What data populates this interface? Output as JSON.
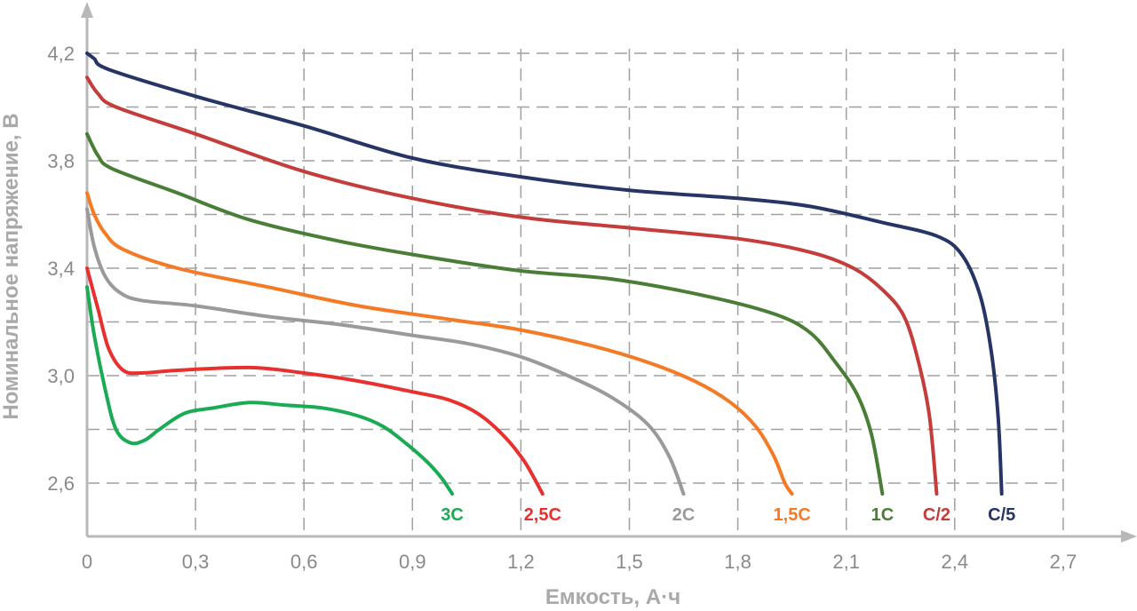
{
  "chart_data": {
    "type": "line",
    "xlabel": "Емкость, А·ч",
    "ylabel": "Номинальное напряжение, В",
    "xlim": [
      0,
      2.85
    ],
    "ylim": [
      2.45,
      4.35
    ],
    "x_ticks": [
      0,
      0.3,
      0.6,
      0.9,
      1.2,
      1.5,
      1.8,
      2.1,
      2.4,
      2.7
    ],
    "x_tick_labels": [
      "0",
      "0,3",
      "0,6",
      "0,9",
      "1,2",
      "1,5",
      "1,8",
      "2,1",
      "2,4",
      "2,7"
    ],
    "y_ticks": [
      2.6,
      3.0,
      3.4,
      3.8,
      4.2
    ],
    "y_tick_labels": [
      "2,6",
      "3,0",
      "3,4",
      "3,8",
      "4,2"
    ],
    "x_grid": [
      0.3,
      0.6,
      0.9,
      1.2,
      1.5,
      1.8,
      2.1,
      2.4,
      2.7
    ],
    "y_grid": [
      2.6,
      2.8,
      3.0,
      3.2,
      3.4,
      3.6,
      3.8,
      4.0,
      4.2
    ],
    "grid": true,
    "series": [
      {
        "name": "3C",
        "color": "#1aab54",
        "points": [
          [
            0,
            3.33
          ],
          [
            0.02,
            3.15
          ],
          [
            0.05,
            2.95
          ],
          [
            0.08,
            2.8
          ],
          [
            0.12,
            2.75
          ],
          [
            0.16,
            2.76
          ],
          [
            0.2,
            2.8
          ],
          [
            0.27,
            2.86
          ],
          [
            0.35,
            2.88
          ],
          [
            0.45,
            2.9
          ],
          [
            0.55,
            2.89
          ],
          [
            0.65,
            2.88
          ],
          [
            0.75,
            2.85
          ],
          [
            0.82,
            2.81
          ],
          [
            0.88,
            2.75
          ],
          [
            0.94,
            2.68
          ],
          [
            0.98,
            2.62
          ],
          [
            1.01,
            2.56
          ]
        ]
      },
      {
        "name": "2,5C",
        "color": "#e8312f",
        "points": [
          [
            0,
            3.4
          ],
          [
            0.03,
            3.25
          ],
          [
            0.06,
            3.1
          ],
          [
            0.1,
            3.02
          ],
          [
            0.15,
            3.01
          ],
          [
            0.25,
            3.02
          ],
          [
            0.45,
            3.03
          ],
          [
            0.6,
            3.01
          ],
          [
            0.75,
            2.98
          ],
          [
            0.9,
            2.94
          ],
          [
            1.0,
            2.91
          ],
          [
            1.08,
            2.86
          ],
          [
            1.15,
            2.78
          ],
          [
            1.21,
            2.68
          ],
          [
            1.26,
            2.56
          ]
        ]
      },
      {
        "name": "2C",
        "color": "#9a9a9a",
        "points": [
          [
            0,
            3.62
          ],
          [
            0.02,
            3.48
          ],
          [
            0.05,
            3.37
          ],
          [
            0.09,
            3.31
          ],
          [
            0.15,
            3.28
          ],
          [
            0.3,
            3.26
          ],
          [
            0.5,
            3.22
          ],
          [
            0.7,
            3.19
          ],
          [
            0.9,
            3.15
          ],
          [
            1.05,
            3.12
          ],
          [
            1.2,
            3.07
          ],
          [
            1.33,
            3.0
          ],
          [
            1.45,
            2.92
          ],
          [
            1.55,
            2.82
          ],
          [
            1.61,
            2.7
          ],
          [
            1.65,
            2.56
          ]
        ]
      },
      {
        "name": "1,5C",
        "color": "#f47a25",
        "points": [
          [
            0,
            3.68
          ],
          [
            0.02,
            3.6
          ],
          [
            0.05,
            3.53
          ],
          [
            0.1,
            3.47
          ],
          [
            0.25,
            3.4
          ],
          [
            0.5,
            3.33
          ],
          [
            0.75,
            3.26
          ],
          [
            1.0,
            3.21
          ],
          [
            1.2,
            3.17
          ],
          [
            1.4,
            3.11
          ],
          [
            1.55,
            3.05
          ],
          [
            1.68,
            2.98
          ],
          [
            1.78,
            2.9
          ],
          [
            1.85,
            2.81
          ],
          [
            1.9,
            2.7
          ],
          [
            1.93,
            2.6
          ],
          [
            1.95,
            2.56
          ]
        ]
      },
      {
        "name": "1C",
        "color": "#4a7d35",
        "points": [
          [
            0,
            3.9
          ],
          [
            0.03,
            3.82
          ],
          [
            0.07,
            3.77
          ],
          [
            0.25,
            3.68
          ],
          [
            0.45,
            3.58
          ],
          [
            0.7,
            3.5
          ],
          [
            0.95,
            3.44
          ],
          [
            1.2,
            3.39
          ],
          [
            1.45,
            3.36
          ],
          [
            1.7,
            3.3
          ],
          [
            1.9,
            3.23
          ],
          [
            2.0,
            3.16
          ],
          [
            2.07,
            3.05
          ],
          [
            2.13,
            2.93
          ],
          [
            2.17,
            2.78
          ],
          [
            2.2,
            2.56
          ]
        ]
      },
      {
        "name": "C/2",
        "color": "#c43d3b",
        "points": [
          [
            0,
            4.11
          ],
          [
            0.03,
            4.05
          ],
          [
            0.08,
            4.0
          ],
          [
            0.3,
            3.9
          ],
          [
            0.6,
            3.76
          ],
          [
            0.9,
            3.66
          ],
          [
            1.2,
            3.59
          ],
          [
            1.5,
            3.55
          ],
          [
            1.8,
            3.51
          ],
          [
            2.0,
            3.46
          ],
          [
            2.12,
            3.4
          ],
          [
            2.2,
            3.32
          ],
          [
            2.26,
            3.22
          ],
          [
            2.3,
            3.05
          ],
          [
            2.33,
            2.85
          ],
          [
            2.35,
            2.56
          ]
        ]
      },
      {
        "name": "C/5",
        "color": "#263566",
        "points": [
          [
            0,
            4.2
          ],
          [
            0.02,
            4.18
          ],
          [
            0.06,
            4.14
          ],
          [
            0.3,
            4.04
          ],
          [
            0.6,
            3.93
          ],
          [
            0.9,
            3.81
          ],
          [
            1.2,
            3.74
          ],
          [
            1.5,
            3.69
          ],
          [
            1.8,
            3.66
          ],
          [
            2.0,
            3.63
          ],
          [
            2.2,
            3.57
          ],
          [
            2.35,
            3.52
          ],
          [
            2.42,
            3.45
          ],
          [
            2.47,
            3.3
          ],
          [
            2.5,
            3.1
          ],
          [
            2.52,
            2.85
          ],
          [
            2.53,
            2.56
          ]
        ]
      }
    ]
  }
}
